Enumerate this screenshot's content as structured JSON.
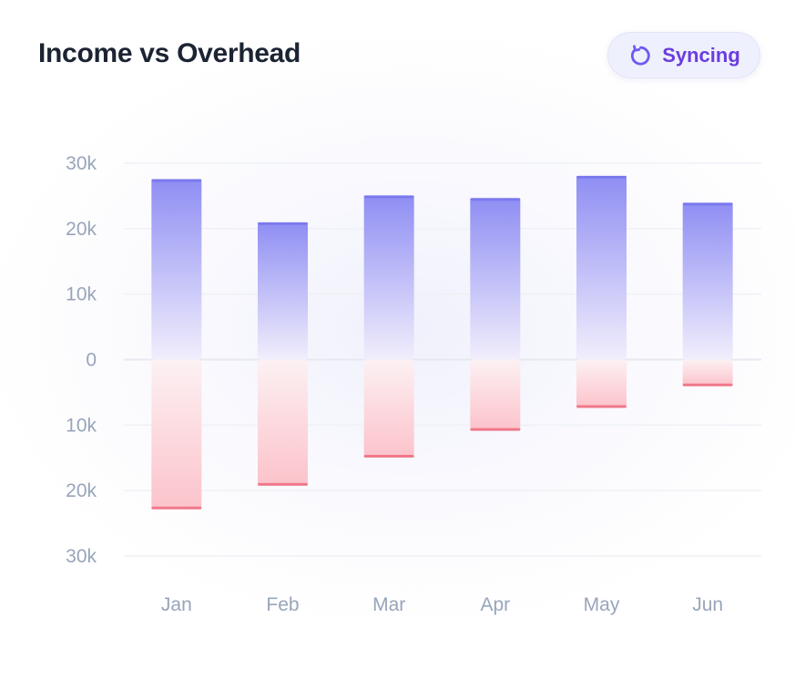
{
  "header": {
    "title": "Income vs Overhead",
    "status_label": "Syncing",
    "status_icon": "refresh-icon"
  },
  "colors": {
    "income_top": "#8f8ef3",
    "income_bottom": "#f1eefc",
    "income_cap": "#7b79ee",
    "overhead_top": "#fcf1f3",
    "overhead_bottom": "#fcc3cb",
    "overhead_cap": "#f0788a",
    "status_text": "#6a3ce0",
    "axis_text": "#98a5b9"
  },
  "chart_data": {
    "type": "bar",
    "title": "Income vs Overhead",
    "categories": [
      "Jan",
      "Feb",
      "Mar",
      "Apr",
      "May",
      "Jun"
    ],
    "series": [
      {
        "name": "Income",
        "values": [
          27500,
          20900,
          25000,
          24600,
          28000,
          23900
        ]
      },
      {
        "name": "Overhead",
        "values": [
          22800,
          19200,
          14900,
          10800,
          7300,
          4000
        ]
      }
    ],
    "ylim": [
      -30000,
      30000
    ],
    "yticks": [
      {
        "value": 30000,
        "label": "30k"
      },
      {
        "value": 20000,
        "label": "20k"
      },
      {
        "value": 10000,
        "label": "10k"
      },
      {
        "value": 0,
        "label": "0"
      },
      {
        "value": -10000,
        "label": "10k"
      },
      {
        "value": -20000,
        "label": "20k"
      },
      {
        "value": -30000,
        "label": "30k"
      }
    ],
    "xlabel": "",
    "ylabel": "",
    "grid": true,
    "legend": "none"
  }
}
